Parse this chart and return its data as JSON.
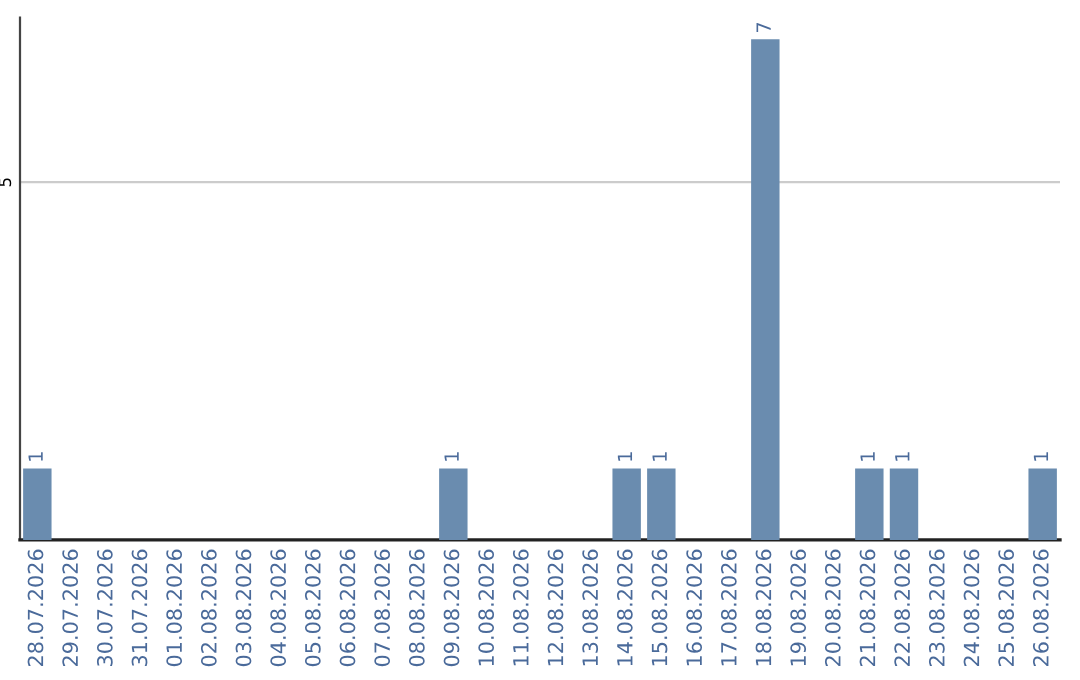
{
  "chart_data": {
    "type": "bar",
    "categories": [
      "28.07.2026",
      "29.07.2026",
      "30.07.2026",
      "31.07.2026",
      "01.08.2026",
      "02.08.2026",
      "03.08.2026",
      "04.08.2026",
      "05.08.2026",
      "06.08.2026",
      "07.08.2026",
      "08.08.2026",
      "09.08.2026",
      "10.08.2026",
      "11.08.2026",
      "12.08.2026",
      "13.08.2026",
      "14.08.2026",
      "15.08.2026",
      "16.08.2026",
      "17.08.2026",
      "18.08.2026",
      "19.08.2026",
      "20.08.2026",
      "21.08.2026",
      "22.08.2026",
      "23.08.2026",
      "24.08.2026",
      "25.08.2026",
      "26.08.2026"
    ],
    "values": [
      1,
      0,
      0,
      0,
      0,
      0,
      0,
      0,
      0,
      0,
      0,
      0,
      1,
      0,
      0,
      0,
      0,
      1,
      1,
      0,
      0,
      7,
      0,
      0,
      1,
      1,
      0,
      0,
      0,
      1
    ],
    "color": "#6a8caf",
    "value_labels": [
      "1",
      null,
      null,
      null,
      null,
      null,
      null,
      null,
      null,
      null,
      null,
      null,
      "1",
      null,
      null,
      null,
      null,
      "1",
      "1",
      null,
      null,
      "7",
      null,
      null,
      "1",
      "1",
      null,
      null,
      null,
      "1"
    ],
    "ylim": [
      0,
      7.3
    ],
    "yticks": [
      5
    ],
    "grid": "y"
  }
}
